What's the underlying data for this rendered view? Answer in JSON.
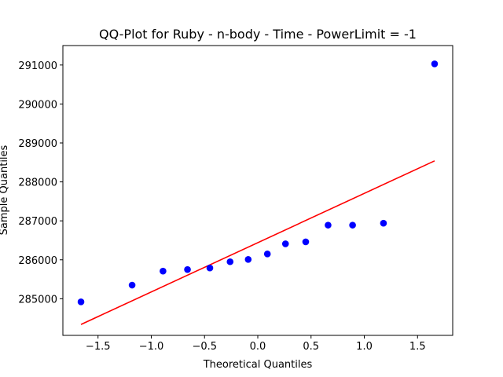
{
  "chart_data": {
    "type": "scatter",
    "title": "QQ-Plot for Ruby - n-body - Time - PowerLimit = -1",
    "xlabel": "Theoretical Quantiles",
    "ylabel": "Sample Quantiles",
    "xlim": [
      -1.83,
      1.83
    ],
    "ylim": [
      284060,
      291500
    ],
    "xticks": [
      -1.5,
      -1.0,
      -0.5,
      0.0,
      0.5,
      1.0,
      1.5
    ],
    "xtick_labels": [
      "−1.5",
      "−1.0",
      "−0.5",
      "0.0",
      "0.5",
      "1.0",
      "1.5"
    ],
    "yticks": [
      285000,
      286000,
      287000,
      288000,
      289000,
      290000,
      291000
    ],
    "ytick_labels": [
      "285000",
      "286000",
      "287000",
      "288000",
      "289000",
      "290000",
      "291000"
    ],
    "grid": false,
    "series": [
      {
        "kind": "points",
        "color": "#0000ff",
        "x": [
          -1.66,
          -1.18,
          -0.89,
          -0.66,
          -0.45,
          -0.26,
          -0.09,
          0.09,
          0.26,
          0.45,
          0.66,
          0.89,
          1.18,
          1.66
        ],
        "y": [
          284920,
          285350,
          285710,
          285750,
          285790,
          285950,
          286010,
          286150,
          286410,
          286460,
          286890,
          286890,
          286940,
          291030
        ]
      },
      {
        "kind": "line",
        "color": "#ff0000",
        "x": [
          -1.66,
          1.66
        ],
        "y": [
          284340,
          288540
        ]
      }
    ]
  }
}
